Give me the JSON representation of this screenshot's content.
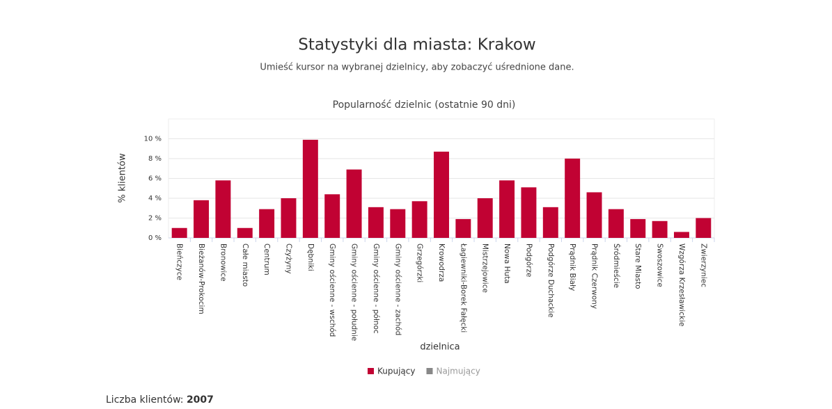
{
  "header": {
    "title": "Statystyki dla miasta: Krakow",
    "subtitle": "Umieść kursor na wybranej dzielnicy, aby zobaczyć uśrednione dane."
  },
  "chart_data": {
    "type": "bar",
    "title": "Popularność dzielnic (ostatnie 90 dni)",
    "x_label": "dzielnica",
    "y_label": "% klientów",
    "categories": [
      "Bieńczyce",
      "Bieżanów-Prokocim",
      "Bronowice",
      "Całe miasto",
      "Centrum",
      "Czyżyny",
      "Dębniki",
      "Gminy ościenne - wschód",
      "Gminy ościenne - południe",
      "Gminy ościenne - północ",
      "Gminy ościenne - zachód",
      "Grzegórzki",
      "Krowodrza",
      "Łagiewniki-Borek Fałęcki",
      "Mistrzejowice",
      "Nowa Huta",
      "Podgórze",
      "Podgórze Duchackie",
      "Prądnik Biały",
      "Prądnik Czerwony",
      "Śródmieście",
      "Stare Miasto",
      "Swoszowice",
      "Wzgórza Krzesławickie",
      "Zwierzyniec"
    ],
    "series": [
      {
        "name": "Kupujący",
        "color": "#c10233",
        "visible": true,
        "values": [
          1.0,
          3.8,
          5.8,
          1.0,
          2.9,
          4.0,
          9.9,
          4.4,
          6.9,
          3.1,
          2.9,
          3.7,
          8.7,
          1.9,
          4.0,
          5.8,
          5.1,
          3.1,
          8.0,
          4.6,
          2.9,
          1.9,
          1.7,
          0.6,
          2.0
        ]
      },
      {
        "name": "Najmujący",
        "color": "#888888",
        "visible": false,
        "values": [
          null,
          null,
          null,
          null,
          null,
          null,
          null,
          null,
          null,
          null,
          null,
          null,
          null,
          null,
          null,
          null,
          null,
          null,
          null,
          null,
          null,
          null,
          null,
          null,
          null
        ]
      }
    ],
    "ylim": [
      0,
      12
    ],
    "yticks": [
      {
        "value": 0,
        "label": "0 %"
      },
      {
        "value": 2,
        "label": "2 %"
      },
      {
        "value": 4,
        "label": "4 %"
      },
      {
        "value": 6,
        "label": "6 %"
      },
      {
        "value": 8,
        "label": "8 %"
      },
      {
        "value": 10,
        "label": "10 %"
      }
    ],
    "grid": true,
    "legend": "bottom"
  },
  "footer": {
    "label": "Liczba klientów:",
    "value": 2007
  }
}
